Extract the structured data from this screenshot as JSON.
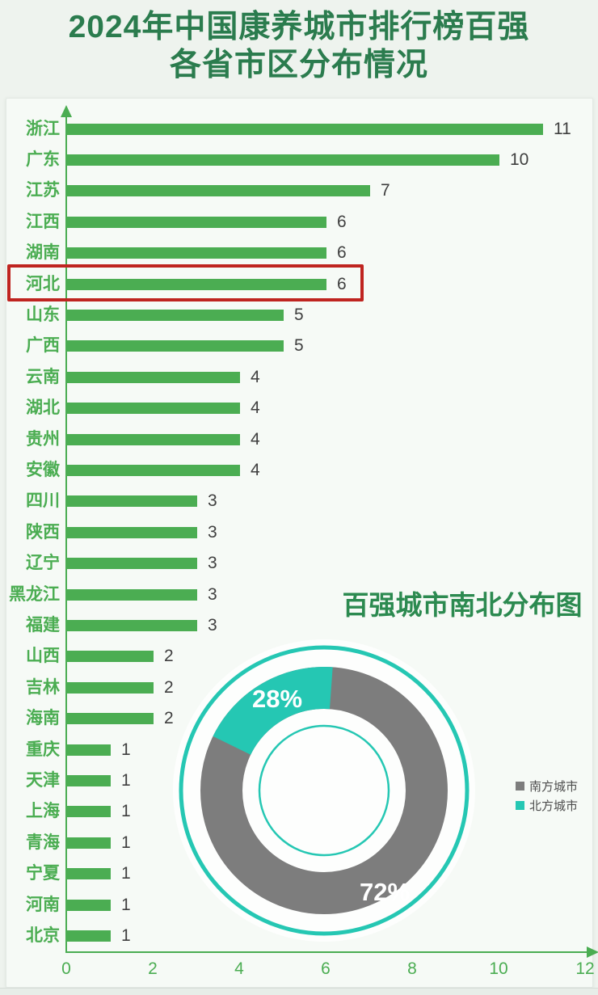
{
  "page_title": {
    "line1": "2024年中国康养城市排行榜百强",
    "line2": "各省市区分布情况"
  },
  "chart_data": [
    {
      "type": "bar",
      "orientation": "horizontal",
      "categories": [
        "浙江",
        "广东",
        "江苏",
        "江西",
        "湖南",
        "河北",
        "山东",
        "广西",
        "云南",
        "湖北",
        "贵州",
        "安徽",
        "四川",
        "陕西",
        "辽宁",
        "黑龙江",
        "福建",
        "山西",
        "吉林",
        "海南",
        "重庆",
        "天津",
        "上海",
        "青海",
        "宁夏",
        "河南",
        "北京"
      ],
      "values": [
        11,
        10,
        7,
        6,
        6,
        6,
        5,
        5,
        4,
        4,
        4,
        4,
        3,
        3,
        3,
        3,
        3,
        2,
        2,
        2,
        1,
        1,
        1,
        1,
        1,
        1,
        1
      ],
      "xlim": [
        0,
        12
      ],
      "x_ticks": [
        "0",
        "2",
        "4",
        "6",
        "8",
        "10",
        "12"
      ],
      "grid": false,
      "bar_color": "#4bad52",
      "label_color": "#4bad52",
      "value_color": "#3f3f3f",
      "axis_color": "#4bad52",
      "highlighted_category": "河北",
      "highlight_box_color": "#bf2420"
    },
    {
      "type": "pie",
      "title": "百强城市南北分布图",
      "slices": [
        {
          "label": "南方城市",
          "value": 72,
          "display": "72%",
          "color": "#7d7d7d"
        },
        {
          "label": "北方城市",
          "value": 28,
          "display": "28%",
          "color": "#25c7b3"
        }
      ],
      "ring_color": "#25c7b3",
      "legend_position": "right"
    }
  ]
}
